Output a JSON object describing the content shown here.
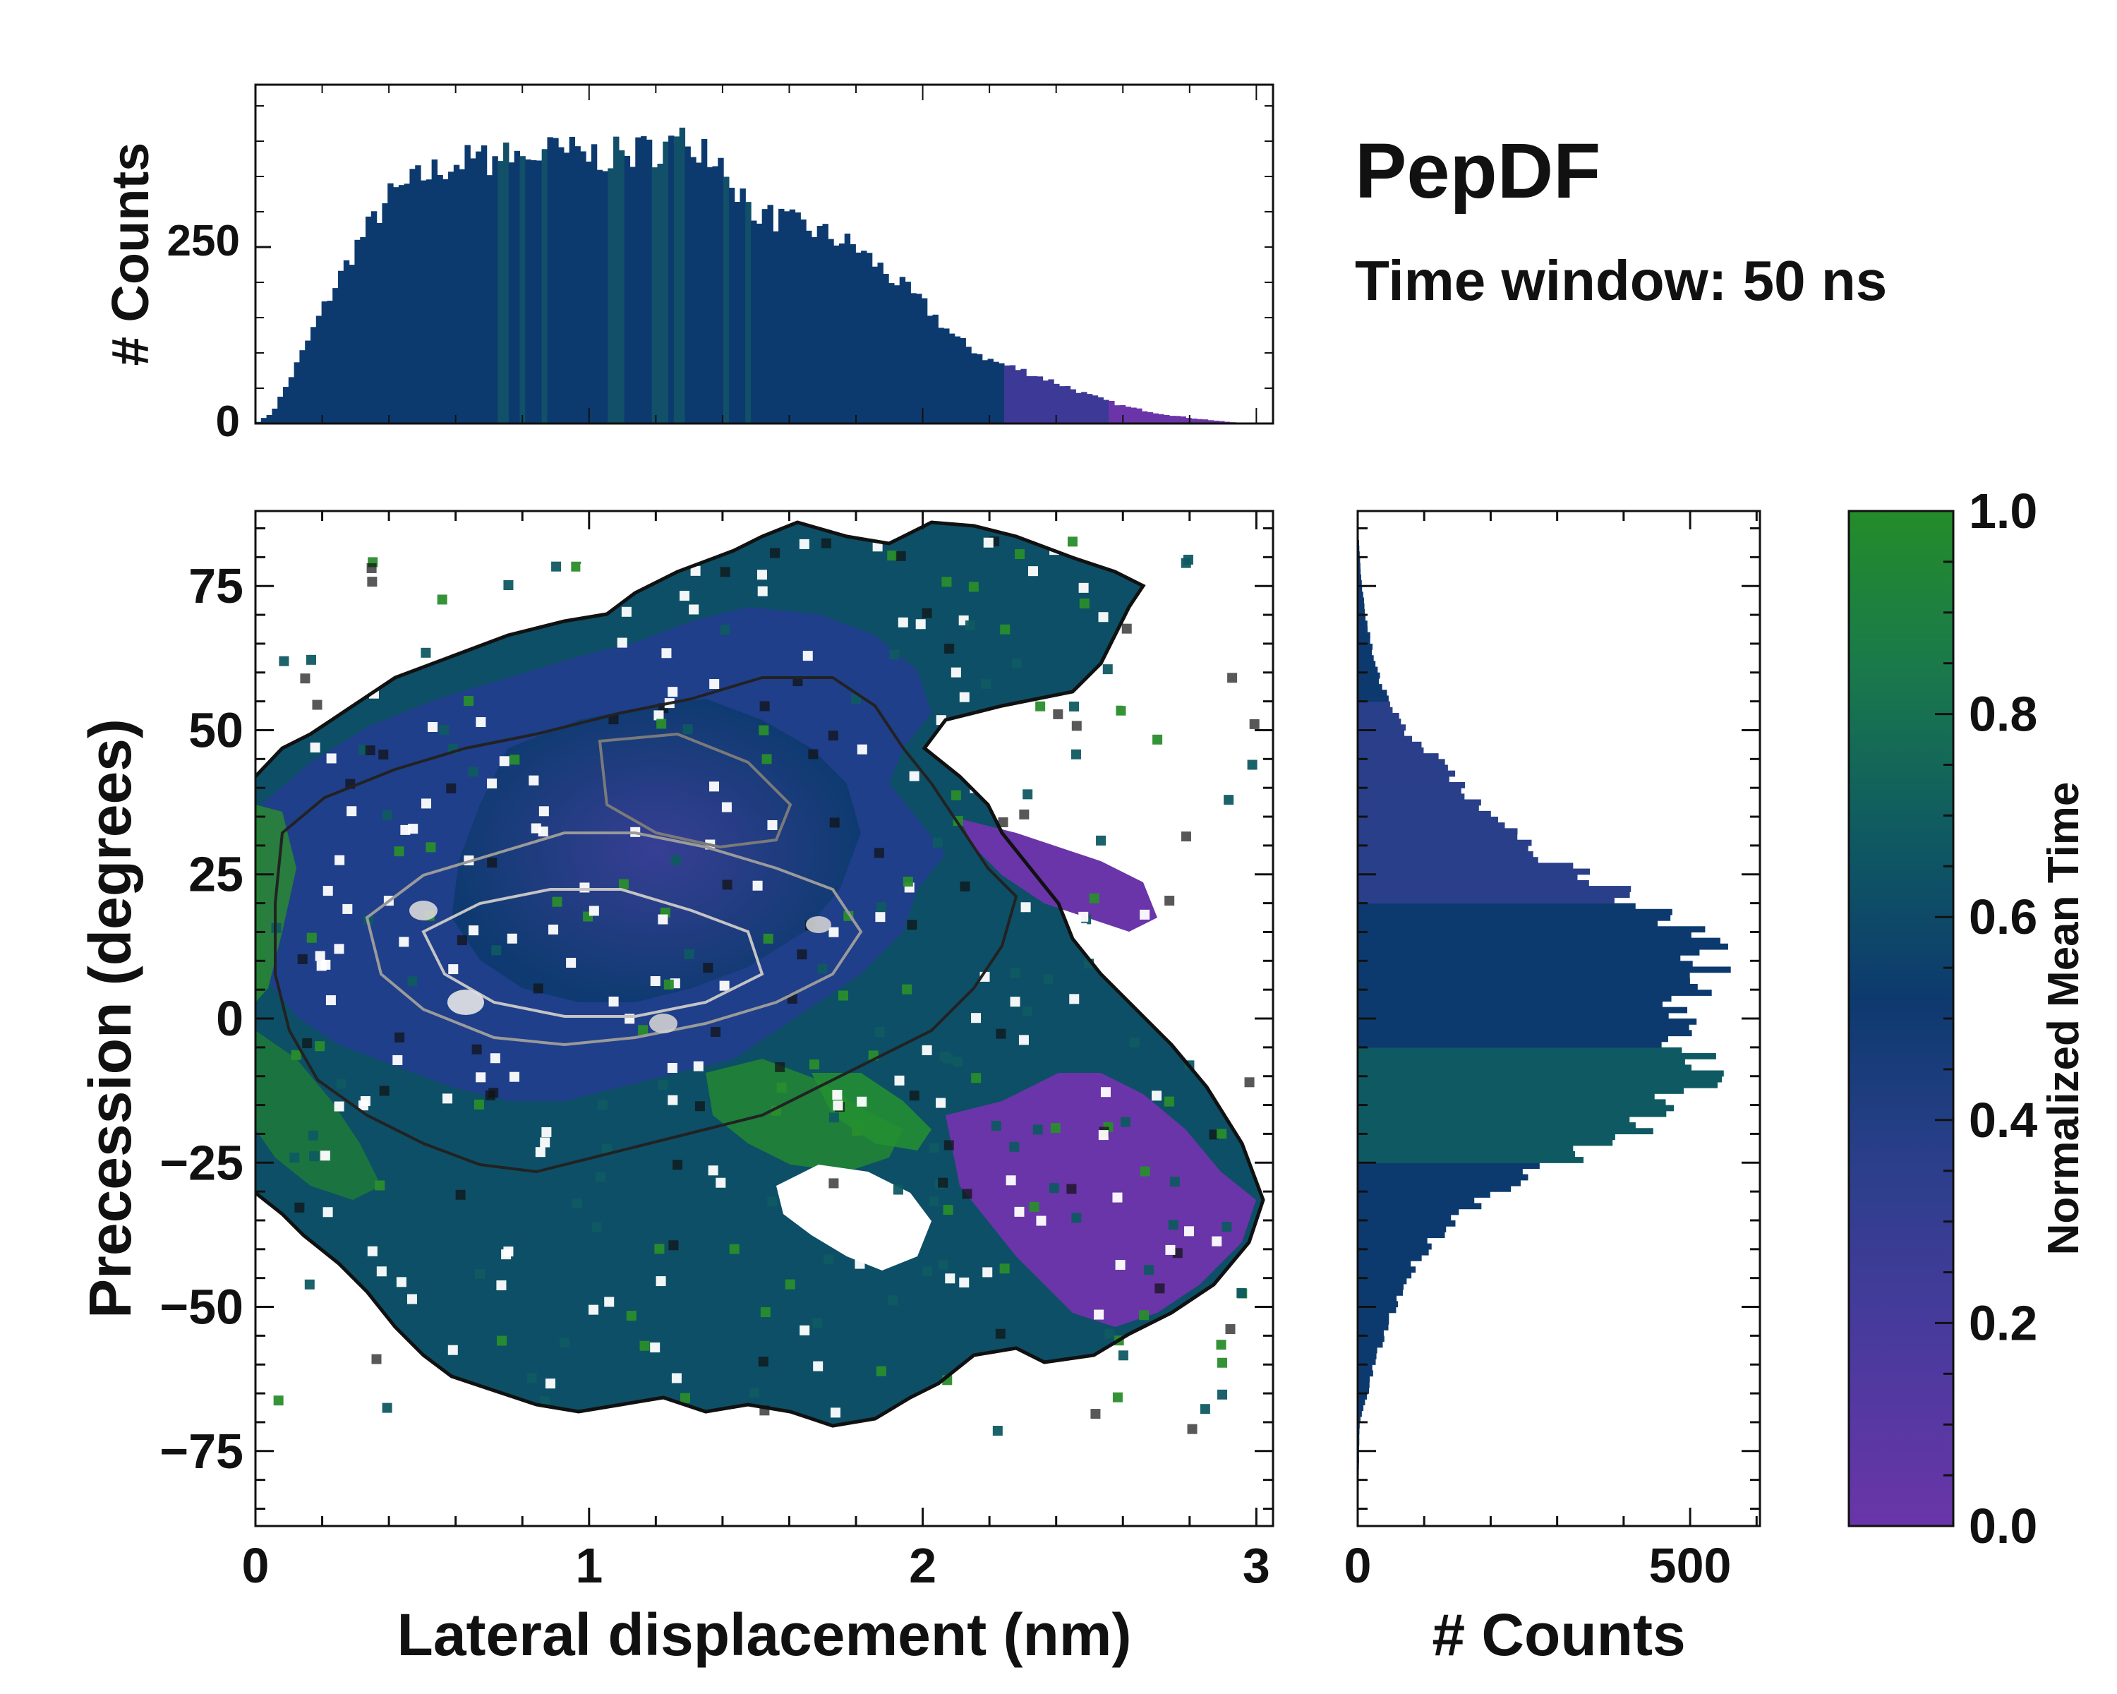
{
  "chart_data": [
    {
      "id": "top_histogram",
      "type": "bar",
      "description": "Marginal histogram of lateral displacement (bars colored by normalized mean time)",
      "xlim": [
        0,
        3.05
      ],
      "ylim": [
        0,
        480
      ],
      "ylabel": "# Counts",
      "y_ticks": [
        0,
        250
      ],
      "profile_x": [
        0.0,
        0.05,
        0.1,
        0.2,
        0.3,
        0.4,
        0.5,
        0.6,
        0.7,
        0.8,
        0.9,
        1.0,
        1.1,
        1.2,
        1.3,
        1.35,
        1.4,
        1.45,
        1.5,
        1.6,
        1.7,
        1.8,
        1.9,
        2.0,
        2.1,
        2.2,
        2.3,
        2.4,
        2.5,
        2.6,
        2.7,
        2.8,
        2.9,
        2.97
      ],
      "profile_y": [
        0,
        15,
        60,
        160,
        250,
        320,
        350,
        370,
        375,
        378,
        385,
        380,
        380,
        390,
        400,
        395,
        370,
        330,
        300,
        285,
        270,
        250,
        210,
        170,
        120,
        90,
        75,
        58,
        40,
        25,
        15,
        8,
        3,
        0
      ]
    },
    {
      "id": "heatmap",
      "type": "heatmap",
      "description": "2D distribution of lateral displacement vs precession, colored by normalized mean time with density contours",
      "xlabel": "Lateral displacement (nm)",
      "ylabel": "Precession (degrees)",
      "xlim": [
        0,
        3.05
      ],
      "ylim": [
        -88,
        88
      ],
      "x_ticks": [
        "0",
        "1",
        "2",
        "3"
      ],
      "y_ticks": [
        "75",
        "50",
        "25",
        "0",
        "−25",
        "−50",
        "−75"
      ],
      "y_tick_values": [
        75,
        50,
        25,
        0,
        -25,
        -50,
        -75
      ],
      "x_tick_values": [
        0,
        1,
        2,
        3
      ]
    },
    {
      "id": "right_histogram",
      "type": "bar",
      "orientation": "horizontal",
      "description": "Marginal histogram of precession",
      "xlabel": "# Counts",
      "xlim": [
        0,
        605
      ],
      "x_ticks": [
        "0",
        "500"
      ],
      "x_tick_values": [
        0,
        500
      ],
      "profile_y": [
        -88,
        -70,
        -65,
        -60,
        -55,
        -50,
        -45,
        -40,
        -35,
        -30,
        -25,
        -20,
        -15,
        -10,
        -5,
        0,
        5,
        10,
        15,
        20,
        25,
        30,
        35,
        40,
        45,
        50,
        55,
        60,
        65,
        70,
        75,
        80,
        85,
        88
      ],
      "profile_x": [
        0,
        3,
        15,
        25,
        40,
        55,
        75,
        100,
        140,
        200,
        300,
        420,
        480,
        520,
        500,
        480,
        500,
        520,
        500,
        420,
        330,
        250,
        200,
        160,
        120,
        70,
        45,
        30,
        20,
        12,
        6,
        3,
        1,
        0
      ]
    },
    {
      "id": "colorbar",
      "type": "colorbar",
      "label": "Normalized Mean Time",
      "range": [
        0.0,
        1.0
      ],
      "ticks": [
        "0.0",
        "0.2",
        "0.4",
        "0.6",
        "0.8",
        "1.0"
      ],
      "tick_values": [
        0.0,
        0.2,
        0.4,
        0.6,
        0.8,
        1.0
      ],
      "colormap": [
        "#6a35a8",
        "#4a3a9e",
        "#2a3f8a",
        "#0d3a6e",
        "#0f5a62",
        "#1a7a4a",
        "#248c2a"
      ]
    }
  ],
  "title": "PepDF",
  "subtitle": "Time window: 50 ns",
  "colors": {
    "bar_main": "#0d3a6e",
    "bar_tail": "#6a35a8",
    "contour_outer": "#111111",
    "contour_inner": "#9a9a9a",
    "white": "#ffffff"
  }
}
